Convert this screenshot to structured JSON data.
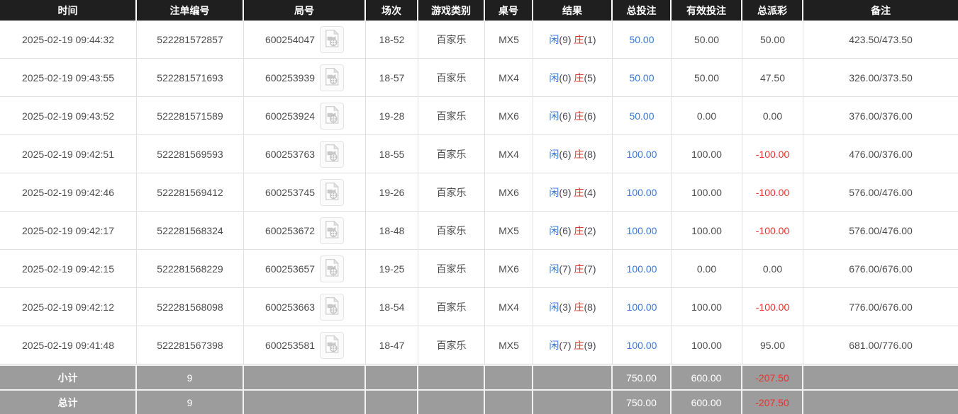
{
  "colors": {
    "header_bg": "#1f1f1f",
    "header_text": "#ffffff",
    "body_text": "#4d4d4d",
    "link_blue": "#3b78d8",
    "player_blue": "#3b78d8",
    "banker_red": "#d9342b",
    "negative_red": "#e8332a",
    "summary_bg": "#9c9c9c",
    "summary_text": "#ffffff",
    "border": "#e0e0e0"
  },
  "icons": {
    "round_video": "video-file-icon"
  },
  "table": {
    "columns": [
      {
        "key": "time",
        "label": "时间"
      },
      {
        "key": "bet-id",
        "label": "注单编号"
      },
      {
        "key": "round",
        "label": "局号"
      },
      {
        "key": "session",
        "label": "场次"
      },
      {
        "key": "game-type",
        "label": "游戏类别"
      },
      {
        "key": "table-no",
        "label": "桌号"
      },
      {
        "key": "result",
        "label": "结果"
      },
      {
        "key": "total-bet",
        "label": "总投注"
      },
      {
        "key": "valid-bet",
        "label": "有效投注"
      },
      {
        "key": "payout",
        "label": "总派彩"
      },
      {
        "key": "remark",
        "label": "备注"
      }
    ],
    "rows": [
      {
        "time": "2025-02-19 09:44:32",
        "bet_id": "522281572857",
        "round_id": "600254047",
        "session": "18-52",
        "game_type": "百家乐",
        "table_no": "MX5",
        "result": {
          "player_label": "闲",
          "player_value": "(9)",
          "banker_label": "庄",
          "banker_value": "(1)"
        },
        "total_bet": "50.00",
        "valid_bet": "50.00",
        "payout": "50.00",
        "remark": "423.50/473.50"
      },
      {
        "time": "2025-02-19 09:43:55",
        "bet_id": "522281571693",
        "round_id": "600253939",
        "session": "18-57",
        "game_type": "百家乐",
        "table_no": "MX4",
        "result": {
          "player_label": "闲",
          "player_value": "(0)",
          "banker_label": "庄",
          "banker_value": "(5)"
        },
        "total_bet": "50.00",
        "valid_bet": "50.00",
        "payout": "47.50",
        "remark": "326.00/373.50"
      },
      {
        "time": "2025-02-19 09:43:52",
        "bet_id": "522281571589",
        "round_id": "600253924",
        "session": "19-28",
        "game_type": "百家乐",
        "table_no": "MX6",
        "result": {
          "player_label": "闲",
          "player_value": "(6)",
          "banker_label": "庄",
          "banker_value": "(6)"
        },
        "total_bet": "50.00",
        "valid_bet": "0.00",
        "payout": "0.00",
        "remark": "376.00/376.00"
      },
      {
        "time": "2025-02-19 09:42:51",
        "bet_id": "522281569593",
        "round_id": "600253763",
        "session": "18-55",
        "game_type": "百家乐",
        "table_no": "MX4",
        "result": {
          "player_label": "闲",
          "player_value": "(6)",
          "banker_label": "庄",
          "banker_value": "(8)"
        },
        "total_bet": "100.00",
        "valid_bet": "100.00",
        "payout": "-100.00",
        "remark": "476.00/376.00"
      },
      {
        "time": "2025-02-19 09:42:46",
        "bet_id": "522281569412",
        "round_id": "600253745",
        "session": "19-26",
        "game_type": "百家乐",
        "table_no": "MX6",
        "result": {
          "player_label": "闲",
          "player_value": "(9)",
          "banker_label": "庄",
          "banker_value": "(4)"
        },
        "total_bet": "100.00",
        "valid_bet": "100.00",
        "payout": "-100.00",
        "remark": "576.00/476.00"
      },
      {
        "time": "2025-02-19 09:42:17",
        "bet_id": "522281568324",
        "round_id": "600253672",
        "session": "18-48",
        "game_type": "百家乐",
        "table_no": "MX5",
        "result": {
          "player_label": "闲",
          "player_value": "(6)",
          "banker_label": "庄",
          "banker_value": "(2)"
        },
        "total_bet": "100.00",
        "valid_bet": "100.00",
        "payout": "-100.00",
        "remark": "576.00/476.00"
      },
      {
        "time": "2025-02-19 09:42:15",
        "bet_id": "522281568229",
        "round_id": "600253657",
        "session": "19-25",
        "game_type": "百家乐",
        "table_no": "MX6",
        "result": {
          "player_label": "闲",
          "player_value": "(7)",
          "banker_label": "庄",
          "banker_value": "(7)"
        },
        "total_bet": "100.00",
        "valid_bet": "0.00",
        "payout": "0.00",
        "remark": "676.00/676.00"
      },
      {
        "time": "2025-02-19 09:42:12",
        "bet_id": "522281568098",
        "round_id": "600253663",
        "session": "18-54",
        "game_type": "百家乐",
        "table_no": "MX4",
        "result": {
          "player_label": "闲",
          "player_value": "(3)",
          "banker_label": "庄",
          "banker_value": "(8)"
        },
        "total_bet": "100.00",
        "valid_bet": "100.00",
        "payout": "-100.00",
        "remark": "776.00/676.00"
      },
      {
        "time": "2025-02-19 09:41:48",
        "bet_id": "522281567398",
        "round_id": "600253581",
        "session": "18-47",
        "game_type": "百家乐",
        "table_no": "MX5",
        "result": {
          "player_label": "闲",
          "player_value": "(7)",
          "banker_label": "庄",
          "banker_value": "(9)"
        },
        "total_bet": "100.00",
        "valid_bet": "100.00",
        "payout": "95.00",
        "remark": "681.00/776.00"
      }
    ],
    "subtotal": {
      "label": "小计",
      "count": "9",
      "total_bet": "750.00",
      "valid_bet": "600.00",
      "payout": "-207.50",
      "remark": ""
    },
    "total": {
      "label": "总计",
      "count": "9",
      "total_bet": "750.00",
      "valid_bet": "600.00",
      "payout": "-207.50",
      "remark": ""
    }
  }
}
